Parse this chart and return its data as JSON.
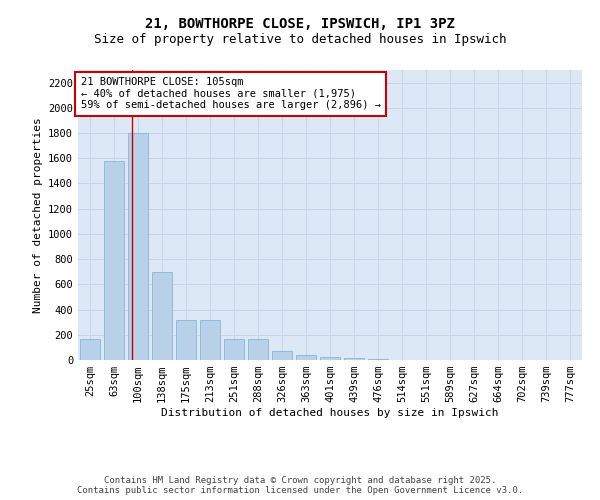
{
  "title": "21, BOWTHORPE CLOSE, IPSWICH, IP1 3PZ",
  "subtitle": "Size of property relative to detached houses in Ipswich",
  "xlabel": "Distribution of detached houses by size in Ipswich",
  "ylabel": "Number of detached properties",
  "categories": [
    "25sqm",
    "63sqm",
    "100sqm",
    "138sqm",
    "175sqm",
    "213sqm",
    "251sqm",
    "288sqm",
    "326sqm",
    "363sqm",
    "401sqm",
    "439sqm",
    "476sqm",
    "514sqm",
    "551sqm",
    "589sqm",
    "627sqm",
    "664sqm",
    "702sqm",
    "739sqm",
    "777sqm"
  ],
  "values": [
    170,
    1580,
    1800,
    700,
    320,
    320,
    170,
    170,
    75,
    40,
    25,
    12,
    4,
    2,
    0,
    0,
    0,
    0,
    0,
    0,
    0
  ],
  "bar_color": "#b8d0e8",
  "bar_edge_color": "#7bafd4",
  "vline_color": "#cc0000",
  "vline_pos": 1.75,
  "annotation_title": "21 BOWTHORPE CLOSE: 105sqm",
  "annotation_line1": "← 40% of detached houses are smaller (1,975)",
  "annotation_line2": "59% of semi-detached houses are larger (2,896) →",
  "annotation_box_facecolor": "#ffffff",
  "annotation_box_edgecolor": "#cc0000",
  "ylim": [
    0,
    2300
  ],
  "yticks": [
    0,
    200,
    400,
    600,
    800,
    1000,
    1200,
    1400,
    1600,
    1800,
    2000,
    2200
  ],
  "grid_color": "#c8d4e3",
  "background_color": "#dce8f5",
  "footer_line1": "Contains HM Land Registry data © Crown copyright and database right 2025.",
  "footer_line2": "Contains public sector information licensed under the Open Government Licence v3.0.",
  "title_fontsize": 10,
  "subtitle_fontsize": 9,
  "axis_label_fontsize": 8,
  "tick_fontsize": 7.5,
  "annotation_fontsize": 7.5,
  "footer_fontsize": 6.5
}
